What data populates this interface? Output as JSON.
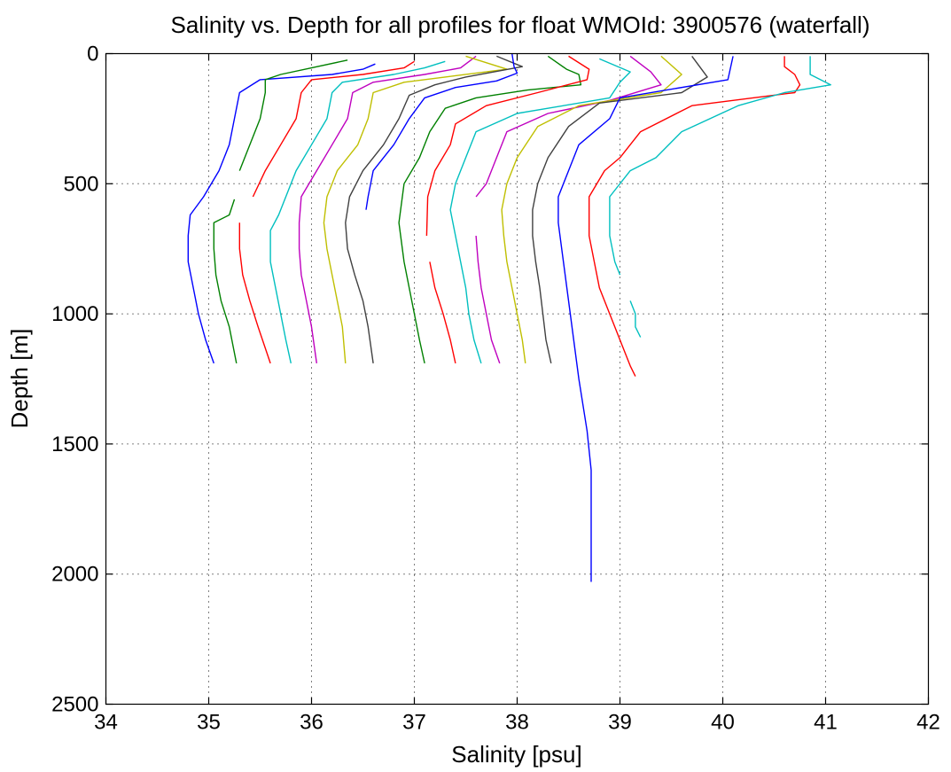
{
  "chart_data": {
    "type": "line",
    "title": "Salinity vs. Depth for all profiles for float WMOId: 3900576 (waterfall)",
    "xlabel": "Salinity [psu]",
    "ylabel": "Depth [m]",
    "xlim": [
      34,
      42
    ],
    "ylim": [
      0,
      2500
    ],
    "y_reversed": true,
    "grid": true,
    "xticks": [
      34,
      35,
      36,
      37,
      38,
      39,
      40,
      41,
      42
    ],
    "yticks": [
      0,
      500,
      1000,
      1500,
      2000,
      2500
    ],
    "xtick_labels": [
      "34",
      "35",
      "36",
      "37",
      "38",
      "39",
      "40",
      "41",
      "42"
    ],
    "ytick_labels": [
      "0",
      "500",
      "1000",
      "1500",
      "2000",
      "2500"
    ],
    "series": [
      {
        "color": "#0000ff",
        "points": [
          [
            36.62,
            40
          ],
          [
            36.5,
            60
          ],
          [
            36.2,
            80
          ],
          [
            35.5,
            100
          ],
          [
            35.3,
            150
          ],
          [
            35.25,
            250
          ],
          [
            35.2,
            350
          ],
          [
            35.1,
            450
          ],
          [
            34.95,
            550
          ],
          [
            34.82,
            620
          ],
          [
            34.8,
            700
          ],
          [
            34.8,
            800
          ],
          [
            34.85,
            900
          ],
          [
            34.9,
            1000
          ],
          [
            34.97,
            1100
          ],
          [
            35.05,
            1190
          ]
        ]
      },
      {
        "color": "#008000",
        "points": [
          [
            36.35,
            25
          ],
          [
            36.0,
            55
          ],
          [
            35.7,
            80
          ],
          [
            35.55,
            100
          ],
          [
            35.55,
            150
          ],
          [
            35.5,
            250
          ],
          [
            35.4,
            350
          ],
          [
            35.3,
            450
          ]
        ]
      },
      {
        "color": "#008000",
        "points": [
          [
            35.25,
            560
          ],
          [
            35.2,
            620
          ],
          [
            35.05,
            650
          ],
          [
            35.05,
            750
          ],
          [
            35.07,
            850
          ],
          [
            35.12,
            950
          ],
          [
            35.2,
            1050
          ],
          [
            35.27,
            1190
          ]
        ]
      },
      {
        "color": "#ff0000",
        "points": [
          [
            37.0,
            30
          ],
          [
            36.9,
            55
          ],
          [
            36.5,
            80
          ],
          [
            36.0,
            100
          ],
          [
            35.9,
            150
          ],
          [
            35.85,
            250
          ],
          [
            35.7,
            350
          ],
          [
            35.55,
            450
          ],
          [
            35.43,
            550
          ]
        ]
      },
      {
        "color": "#ff0000",
        "points": [
          [
            35.3,
            650
          ],
          [
            35.3,
            750
          ],
          [
            35.33,
            850
          ],
          [
            35.4,
            950
          ],
          [
            35.48,
            1050
          ],
          [
            35.6,
            1190
          ]
        ]
      },
      {
        "color": "#00bfbf",
        "points": [
          [
            37.3,
            30
          ],
          [
            37.1,
            55
          ],
          [
            36.8,
            80
          ],
          [
            36.3,
            110
          ],
          [
            36.2,
            150
          ],
          [
            36.15,
            250
          ],
          [
            36.0,
            350
          ],
          [
            35.85,
            450
          ],
          [
            35.75,
            550
          ],
          [
            35.68,
            620
          ],
          [
            35.6,
            680
          ],
          [
            35.6,
            800
          ],
          [
            35.65,
            900
          ],
          [
            35.7,
            1000
          ],
          [
            35.75,
            1100
          ],
          [
            35.8,
            1190
          ]
        ]
      },
      {
        "color": "#bf00bf",
        "points": [
          [
            37.6,
            10
          ],
          [
            37.45,
            55
          ],
          [
            37.1,
            80
          ],
          [
            36.6,
            110
          ],
          [
            36.4,
            150
          ],
          [
            36.35,
            250
          ],
          [
            36.2,
            350
          ],
          [
            36.05,
            450
          ],
          [
            35.9,
            550
          ],
          [
            35.88,
            650
          ],
          [
            35.88,
            750
          ],
          [
            35.9,
            850
          ],
          [
            35.95,
            950
          ],
          [
            36.0,
            1050
          ],
          [
            36.05,
            1190
          ]
        ]
      },
      {
        "color": "#bfbf00",
        "points": [
          [
            37.5,
            10
          ],
          [
            37.9,
            60
          ],
          [
            37.3,
            90
          ],
          [
            36.9,
            110
          ],
          [
            36.6,
            150
          ],
          [
            36.55,
            250
          ],
          [
            36.45,
            350
          ],
          [
            36.25,
            450
          ],
          [
            36.15,
            550
          ],
          [
            36.12,
            650
          ],
          [
            36.15,
            750
          ],
          [
            36.2,
            850
          ],
          [
            36.25,
            950
          ],
          [
            36.3,
            1050
          ],
          [
            36.33,
            1190
          ]
        ]
      },
      {
        "color": "#404040",
        "points": [
          [
            37.8,
            10
          ],
          [
            38.05,
            50
          ],
          [
            37.5,
            90
          ],
          [
            37.2,
            120
          ],
          [
            36.95,
            160
          ],
          [
            36.85,
            250
          ],
          [
            36.7,
            350
          ],
          [
            36.5,
            450
          ],
          [
            36.37,
            550
          ],
          [
            36.33,
            650
          ],
          [
            36.35,
            750
          ],
          [
            36.42,
            850
          ],
          [
            36.5,
            950
          ],
          [
            36.55,
            1050
          ],
          [
            36.6,
            1190
          ]
        ]
      },
      {
        "color": "#0000ff",
        "points": [
          [
            37.95,
            0
          ],
          [
            37.97,
            50
          ],
          [
            38.0,
            75
          ],
          [
            37.8,
            105
          ],
          [
            37.4,
            130
          ],
          [
            37.1,
            170
          ],
          [
            36.95,
            250
          ],
          [
            36.8,
            350
          ],
          [
            36.6,
            450
          ],
          [
            36.55,
            550
          ],
          [
            36.53,
            600
          ]
        ]
      },
      {
        "color": "#008000",
        "points": [
          [
            38.3,
            10
          ],
          [
            38.48,
            60
          ],
          [
            38.6,
            80
          ],
          [
            38.62,
            120
          ],
          [
            38.1,
            140
          ],
          [
            37.6,
            170
          ],
          [
            37.3,
            210
          ],
          [
            37.15,
            300
          ],
          [
            37.05,
            400
          ],
          [
            36.9,
            500
          ],
          [
            36.85,
            650
          ],
          [
            36.9,
            800
          ],
          [
            36.95,
            900
          ],
          [
            37.0,
            1000
          ],
          [
            37.05,
            1100
          ],
          [
            37.1,
            1190
          ]
        ]
      },
      {
        "color": "#ff0000",
        "points": [
          [
            38.5,
            10
          ],
          [
            38.7,
            60
          ],
          [
            38.68,
            100
          ],
          [
            38.2,
            150
          ],
          [
            37.7,
            200
          ],
          [
            37.4,
            270
          ],
          [
            37.35,
            350
          ],
          [
            37.2,
            450
          ],
          [
            37.13,
            550
          ],
          [
            37.12,
            700
          ]
        ]
      },
      {
        "color": "#ff0000",
        "points": [
          [
            37.15,
            800
          ],
          [
            37.2,
            900
          ],
          [
            37.28,
            1000
          ],
          [
            37.35,
            1100
          ],
          [
            37.4,
            1190
          ]
        ]
      },
      {
        "color": "#00bfbf",
        "points": [
          [
            38.8,
            20
          ],
          [
            39.1,
            70
          ],
          [
            39.0,
            110
          ],
          [
            38.9,
            170
          ],
          [
            38.0,
            230
          ],
          [
            37.6,
            300
          ],
          [
            37.5,
            400
          ],
          [
            37.4,
            500
          ],
          [
            37.35,
            600
          ],
          [
            37.4,
            700
          ],
          [
            37.45,
            800
          ],
          [
            37.5,
            900
          ],
          [
            37.53,
            1000
          ],
          [
            37.58,
            1100
          ],
          [
            37.65,
            1190
          ]
        ]
      },
      {
        "color": "#bf00bf",
        "points": [
          [
            39.1,
            10
          ],
          [
            39.3,
            70
          ],
          [
            39.4,
            120
          ],
          [
            38.9,
            180
          ],
          [
            38.3,
            230
          ],
          [
            37.9,
            300
          ],
          [
            37.8,
            400
          ],
          [
            37.7,
            500
          ],
          [
            37.6,
            550
          ]
        ]
      },
      {
        "color": "#bf00bf",
        "points": [
          [
            37.6,
            700
          ],
          [
            37.62,
            800
          ],
          [
            37.65,
            900
          ],
          [
            37.7,
            1000
          ],
          [
            37.75,
            1100
          ],
          [
            37.83,
            1190
          ]
        ]
      },
      {
        "color": "#bfbf00",
        "points": [
          [
            39.4,
            10
          ],
          [
            39.6,
            80
          ],
          [
            39.4,
            150
          ],
          [
            38.6,
            200
          ],
          [
            38.2,
            280
          ],
          [
            38.0,
            400
          ],
          [
            37.9,
            500
          ],
          [
            37.85,
            600
          ],
          [
            37.87,
            700
          ],
          [
            37.9,
            800
          ],
          [
            37.95,
            900
          ],
          [
            38.0,
            1000
          ],
          [
            38.05,
            1100
          ],
          [
            38.08,
            1190
          ]
        ]
      },
      {
        "color": "#404040",
        "points": [
          [
            39.7,
            10
          ],
          [
            39.85,
            90
          ],
          [
            39.6,
            150
          ],
          [
            38.8,
            190
          ],
          [
            38.5,
            280
          ],
          [
            38.3,
            400
          ],
          [
            38.2,
            500
          ],
          [
            38.15,
            600
          ],
          [
            38.15,
            700
          ],
          [
            38.18,
            800
          ],
          [
            38.22,
            900
          ],
          [
            38.25,
            1000
          ],
          [
            38.28,
            1100
          ],
          [
            38.33,
            1190
          ]
        ]
      },
      {
        "color": "#0000ff",
        "points": [
          [
            40.1,
            10
          ],
          [
            40.05,
            100
          ],
          [
            39.0,
            170
          ],
          [
            38.9,
            250
          ],
          [
            38.6,
            350
          ],
          [
            38.5,
            450
          ],
          [
            38.4,
            550
          ],
          [
            38.4,
            650
          ],
          [
            38.45,
            800
          ],
          [
            38.5,
            950
          ],
          [
            38.55,
            1100
          ],
          [
            38.6,
            1250
          ],
          [
            38.68,
            1450
          ],
          [
            38.72,
            1600
          ],
          [
            38.72,
            1800
          ],
          [
            38.72,
            2030
          ]
        ]
      },
      {
        "color": "#ff0000",
        "points": [
          [
            40.6,
            10
          ],
          [
            40.6,
            50
          ],
          [
            40.7,
            80
          ],
          [
            40.75,
            120
          ],
          [
            40.7,
            150
          ],
          [
            39.7,
            200
          ],
          [
            39.2,
            300
          ],
          [
            39.0,
            400
          ],
          [
            38.85,
            450
          ],
          [
            38.7,
            550
          ],
          [
            38.7,
            700
          ],
          [
            38.75,
            800
          ],
          [
            38.8,
            900
          ],
          [
            38.9,
            1000
          ],
          [
            39.0,
            1100
          ],
          [
            39.1,
            1200
          ],
          [
            39.15,
            1240
          ]
        ]
      },
      {
        "color": "#00bfbf",
        "points": [
          [
            40.85,
            10
          ],
          [
            40.85,
            80
          ],
          [
            41.05,
            120
          ],
          [
            40.6,
            150
          ],
          [
            40.15,
            200
          ],
          [
            39.6,
            300
          ],
          [
            39.35,
            400
          ],
          [
            39.1,
            450
          ],
          [
            38.9,
            550
          ],
          [
            38.9,
            700
          ],
          [
            38.95,
            800
          ],
          [
            39.0,
            850
          ]
        ]
      },
      {
        "color": "#00bfbf",
        "points": [
          [
            39.1,
            950
          ],
          [
            39.15,
            1000
          ],
          [
            39.15,
            1050
          ],
          [
            39.2,
            1090
          ]
        ]
      }
    ]
  }
}
